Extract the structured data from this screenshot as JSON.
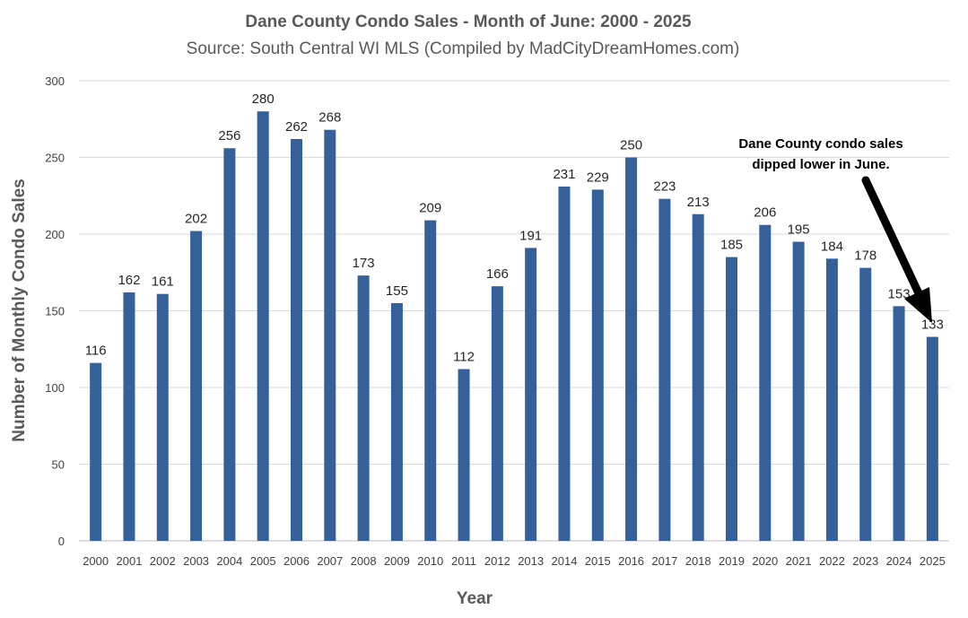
{
  "chart_data": {
    "type": "bar",
    "title": "Dane County Condo Sales - Month of June: 2000 - 2025",
    "subtitle": "Source: South Central WI MLS (Compiled by MadCityDreamHomes.com)",
    "xlabel": "Year",
    "ylabel": "Number of Monthly Condo Sales",
    "ylim": [
      0,
      300
    ],
    "yticks": [
      0,
      50,
      100,
      150,
      200,
      250,
      300
    ],
    "grid": true,
    "categories": [
      "2000",
      "2001",
      "2002",
      "2003",
      "2004",
      "2005",
      "2006",
      "2007",
      "2008",
      "2009",
      "2010",
      "2011",
      "2012",
      "2013",
      "2014",
      "2015",
      "2016",
      "2017",
      "2018",
      "2019",
      "2020",
      "2021",
      "2022",
      "2023",
      "2024",
      "2025"
    ],
    "values": [
      116,
      162,
      161,
      202,
      256,
      280,
      262,
      268,
      173,
      155,
      209,
      112,
      166,
      191,
      231,
      229,
      250,
      223,
      213,
      185,
      206,
      195,
      184,
      178,
      153,
      133
    ],
    "bar_color": "#35609a",
    "annotation": {
      "lines": [
        "Dane County condo sales",
        "dipped lower in June."
      ],
      "arrow_color": "#000000"
    }
  }
}
